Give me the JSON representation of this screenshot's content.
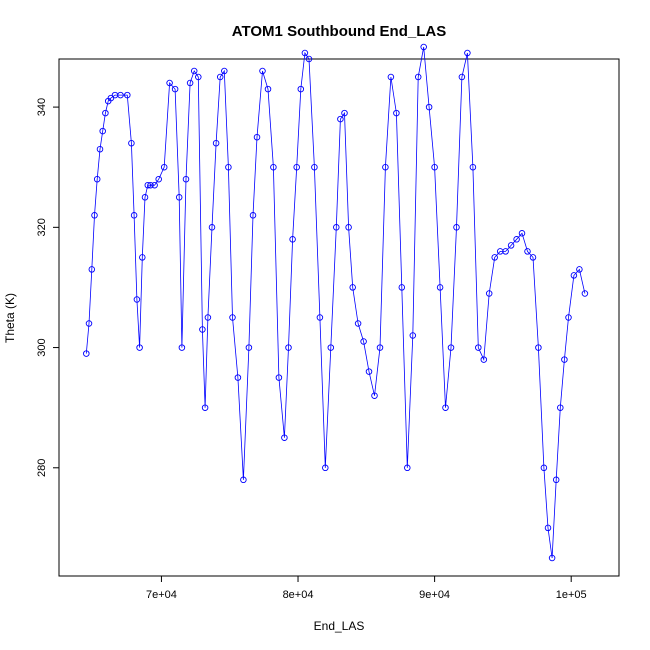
{
  "chart_data": {
    "type": "scatter",
    "title": "ATOM1 Southbound End_LAS",
    "xlabel": "End_LAS",
    "ylabel": "Theta (K)",
    "xlim": [
      62500,
      103500
    ],
    "ylim": [
      262,
      348
    ],
    "xticks": [
      70000,
      80000,
      90000,
      100000
    ],
    "xtick_labels": [
      "7e+04",
      "8e+04",
      "9e+04",
      "1e+05"
    ],
    "yticks": [
      280,
      300,
      320,
      340
    ],
    "ytick_labels": [
      "280",
      "300",
      "320",
      "340"
    ],
    "grid": false,
    "legend": "none",
    "series_color": "#0000ff",
    "marker": "open-circle",
    "connect_points": true,
    "series": [
      {
        "x": [
          64500,
          64700,
          64900,
          65100,
          65300,
          65500,
          65700,
          65900,
          66100,
          66300,
          66600,
          67000,
          67500,
          67800,
          68000,
          68200,
          68400,
          68600,
          68800,
          69000,
          69200,
          69500,
          69800,
          70200,
          70600,
          71000,
          71300,
          71500,
          71800,
          72100,
          72400,
          72700,
          73000,
          73200,
          73400,
          73700,
          74000,
          74300,
          74600,
          74900,
          75200,
          75600,
          76000,
          76400,
          76700,
          77000,
          77400,
          77800,
          78200,
          78600,
          79000,
          79300,
          79600,
          79900,
          80200,
          80500,
          80800,
          81200,
          81600,
          82000,
          82400,
          82800,
          83100,
          83400,
          83700,
          84000,
          84400,
          84800,
          85200,
          85600,
          86000,
          86400,
          86800,
          87200,
          87600,
          88000,
          88400,
          88800,
          89200,
          89600,
          90000,
          90400,
          90800,
          91200,
          91600,
          92000,
          92400,
          92800,
          93200,
          93600,
          94000,
          94400,
          94800,
          95200,
          95600,
          96000,
          96400,
          96800,
          97200,
          97600,
          98000,
          98300,
          98600,
          98900,
          99200,
          99500,
          99800,
          100200,
          100600,
          101000
        ],
        "y": [
          299,
          304,
          313,
          322,
          328,
          333,
          336,
          339,
          341,
          341.5,
          342,
          342,
          342,
          334,
          322,
          308,
          300,
          315,
          325,
          327,
          327,
          327,
          328,
          330,
          344,
          343,
          325,
          300,
          328,
          344,
          346,
          345,
          303,
          290,
          305,
          320,
          334,
          345,
          346,
          330,
          305,
          295,
          278,
          300,
          322,
          335,
          346,
          343,
          330,
          295,
          285,
          300,
          318,
          330,
          343,
          349,
          348,
          330,
          305,
          280,
          300,
          320,
          338,
          339,
          320,
          310,
          304,
          301,
          296,
          292,
          300,
          330,
          345,
          339,
          310,
          280,
          302,
          345,
          350,
          340,
          330,
          310,
          290,
          300,
          320,
          345,
          349,
          330,
          300,
          298,
          309,
          315,
          316,
          316,
          317,
          318,
          319,
          316,
          315,
          300,
          280,
          270,
          265,
          278,
          290,
          298,
          305,
          312,
          313,
          309
        ]
      }
    ]
  }
}
